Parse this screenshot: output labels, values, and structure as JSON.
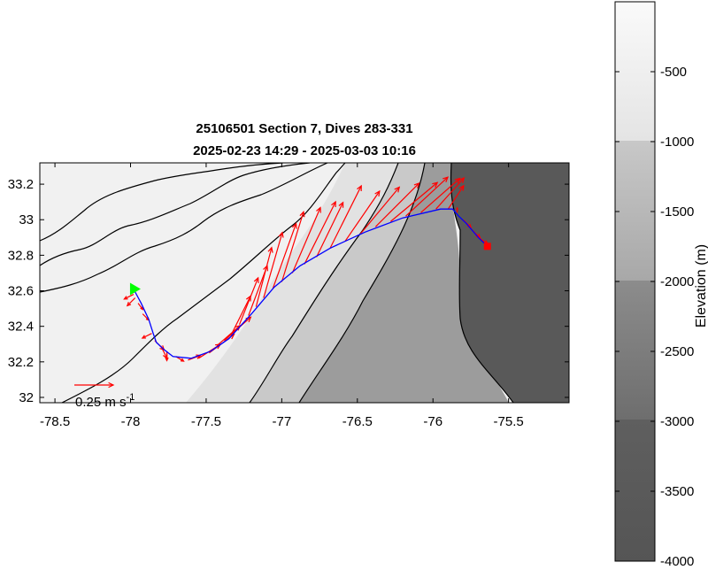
{
  "chart_data": {
    "type": "map",
    "title": "25106501 Section 7, Dives 283-331",
    "subtitle": "2025-02-23 14:29 - 2025-03-03 10:16",
    "xlim": [
      -78.6,
      -75.1
    ],
    "ylim": [
      31.97,
      33.32
    ],
    "x_ticks": [
      -78.5,
      -78,
      -77.5,
      -77,
      -76.5,
      -76,
      -75.5
    ],
    "x_tick_labels": [
      "-78.5",
      "-78",
      "-77.5",
      "-77",
      "-76.5",
      "-76",
      "-75.5"
    ],
    "y_ticks": [
      32,
      32.2,
      32.4,
      32.6,
      32.8,
      33,
      33.2
    ],
    "y_tick_labels": [
      "32",
      "32.2",
      "32.4",
      "32.6",
      "32.8",
      "33",
      "33.2"
    ],
    "scale_arrow_label": "0.25 m s",
    "scale_arrow_exponent": "-1",
    "scale_arrow_speed": 0.25,
    "start_marker": {
      "lon": -77.98,
      "lat": 32.61
    },
    "end_marker": {
      "lon": -75.64,
      "lat": 32.85
    },
    "track": [
      {
        "lon": -77.98,
        "lat": 32.61
      },
      {
        "lon": -77.93,
        "lat": 32.53
      },
      {
        "lon": -77.88,
        "lat": 32.44
      },
      {
        "lon": -77.85,
        "lat": 32.36
      },
      {
        "lon": -77.83,
        "lat": 32.31
      },
      {
        "lon": -77.78,
        "lat": 32.27
      },
      {
        "lon": -77.72,
        "lat": 32.23
      },
      {
        "lon": -77.6,
        "lat": 32.22
      },
      {
        "lon": -77.47,
        "lat": 32.26
      },
      {
        "lon": -77.35,
        "lat": 32.33
      },
      {
        "lon": -77.2,
        "lat": 32.47
      },
      {
        "lon": -77.05,
        "lat": 32.62
      },
      {
        "lon": -76.88,
        "lat": 32.74
      },
      {
        "lon": -76.68,
        "lat": 32.84
      },
      {
        "lon": -76.45,
        "lat": 32.93
      },
      {
        "lon": -76.2,
        "lat": 33.01
      },
      {
        "lon": -75.95,
        "lat": 33.06
      },
      {
        "lon": -75.87,
        "lat": 33.06
      },
      {
        "lon": -75.83,
        "lat": 33.02
      },
      {
        "lon": -75.78,
        "lat": 32.98
      },
      {
        "lon": -75.7,
        "lat": 32.9
      },
      {
        "lon": -75.64,
        "lat": 32.85
      }
    ],
    "current_vectors": [
      {
        "lon": -77.98,
        "lat": 32.58,
        "u": -0.06,
        "v": -0.03
      },
      {
        "lon": -77.97,
        "lat": 32.56,
        "u": -0.05,
        "v": -0.05
      },
      {
        "lon": -77.95,
        "lat": 32.53,
        "u": 0.03,
        "v": -0.04
      },
      {
        "lon": -77.92,
        "lat": 32.47,
        "u": 0.04,
        "v": -0.04
      },
      {
        "lon": -77.86,
        "lat": 32.36,
        "u": -0.06,
        "v": -0.03
      },
      {
        "lon": -77.84,
        "lat": 32.32,
        "u": 0.06,
        "v": -0.06
      },
      {
        "lon": -77.8,
        "lat": 32.29,
        "u": 0.04,
        "v": -0.08
      },
      {
        "lon": -77.76,
        "lat": 32.26,
        "u": 0.0,
        "v": -0.06
      },
      {
        "lon": -77.7,
        "lat": 32.23,
        "u": 0.05,
        "v": -0.03
      },
      {
        "lon": -77.62,
        "lat": 32.21,
        "u": 0.08,
        "v": 0.03
      },
      {
        "lon": -77.55,
        "lat": 32.22,
        "u": 0.14,
        "v": 0.09
      },
      {
        "lon": -77.48,
        "lat": 32.25,
        "u": 0.16,
        "v": 0.12
      },
      {
        "lon": -77.43,
        "lat": 32.29,
        "u": 0.15,
        "v": 0.13
      },
      {
        "lon": -77.38,
        "lat": 32.32,
        "u": 0.17,
        "v": 0.15
      },
      {
        "lon": -77.33,
        "lat": 32.36,
        "u": 0.12,
        "v": 0.24
      },
      {
        "lon": -77.28,
        "lat": 32.41,
        "u": 0.12,
        "v": 0.3
      },
      {
        "lon": -77.22,
        "lat": 32.46,
        "u": 0.12,
        "v": 0.32
      },
      {
        "lon": -77.17,
        "lat": 32.51,
        "u": 0.1,
        "v": 0.38
      },
      {
        "lon": -77.12,
        "lat": 32.56,
        "u": 0.12,
        "v": 0.42
      },
      {
        "lon": -77.06,
        "lat": 32.61,
        "u": 0.15,
        "v": 0.42
      },
      {
        "lon": -77.0,
        "lat": 32.65,
        "u": 0.14,
        "v": 0.45
      },
      {
        "lon": -76.93,
        "lat": 32.7,
        "u": 0.18,
        "v": 0.42
      },
      {
        "lon": -76.85,
        "lat": 32.75,
        "u": 0.2,
        "v": 0.4
      },
      {
        "lon": -76.77,
        "lat": 32.79,
        "u": 0.17,
        "v": 0.35
      },
      {
        "lon": -76.68,
        "lat": 32.84,
        "u": 0.2,
        "v": 0.4
      },
      {
        "lon": -76.58,
        "lat": 32.88,
        "u": 0.22,
        "v": 0.32
      },
      {
        "lon": -76.48,
        "lat": 32.92,
        "u": 0.25,
        "v": 0.3
      },
      {
        "lon": -76.38,
        "lat": 32.96,
        "u": 0.28,
        "v": 0.28
      },
      {
        "lon": -76.28,
        "lat": 32.99,
        "u": 0.3,
        "v": 0.25
      },
      {
        "lon": -76.18,
        "lat": 33.02,
        "u": 0.27,
        "v": 0.25
      },
      {
        "lon": -76.08,
        "lat": 33.04,
        "u": 0.25,
        "v": 0.22
      },
      {
        "lon": -75.98,
        "lat": 33.06,
        "u": 0.18,
        "v": 0.2
      },
      {
        "lon": -75.9,
        "lat": 33.06,
        "u": 0.1,
        "v": 0.15
      },
      {
        "lon": -75.84,
        "lat": 33.04,
        "u": 0.0,
        "v": 0.03
      },
      {
        "lon": -75.8,
        "lat": 33.0,
        "u": 0.05,
        "v": -0.05
      },
      {
        "lon": -75.75,
        "lat": 32.95,
        "u": 0.06,
        "v": -0.06
      },
      {
        "lon": -75.7,
        "lat": 32.9,
        "u": 0.06,
        "v": -0.04
      }
    ],
    "colorbar": {
      "label": "Elevation (m)",
      "range": [
        -4000,
        0
      ],
      "ticks": [
        -500,
        -1000,
        -1500,
        -2000,
        -2500,
        -3000,
        -3500,
        -4000
      ],
      "tick_labels": [
        "-500",
        "-1000",
        "-1500",
        "-2000",
        "-2500",
        "-3000",
        "-3500",
        "-4000"
      ],
      "bands": [
        {
          "from": -4000,
          "to": -3000,
          "color": "#595959"
        },
        {
          "from": -3000,
          "to": -2000,
          "color": "#9a9a9a"
        },
        {
          "from": -2000,
          "to": -1000,
          "color": "#c4c4c4"
        },
        {
          "from": -1000,
          "to": 0,
          "color": "#f0f0f0"
        }
      ]
    },
    "colors": {
      "track": "#0000ff",
      "current_vectors": "#ff0000",
      "start_marker": "#00ff00",
      "end_marker": "#ff0000",
      "contours": "#000000"
    },
    "grid": false
  }
}
